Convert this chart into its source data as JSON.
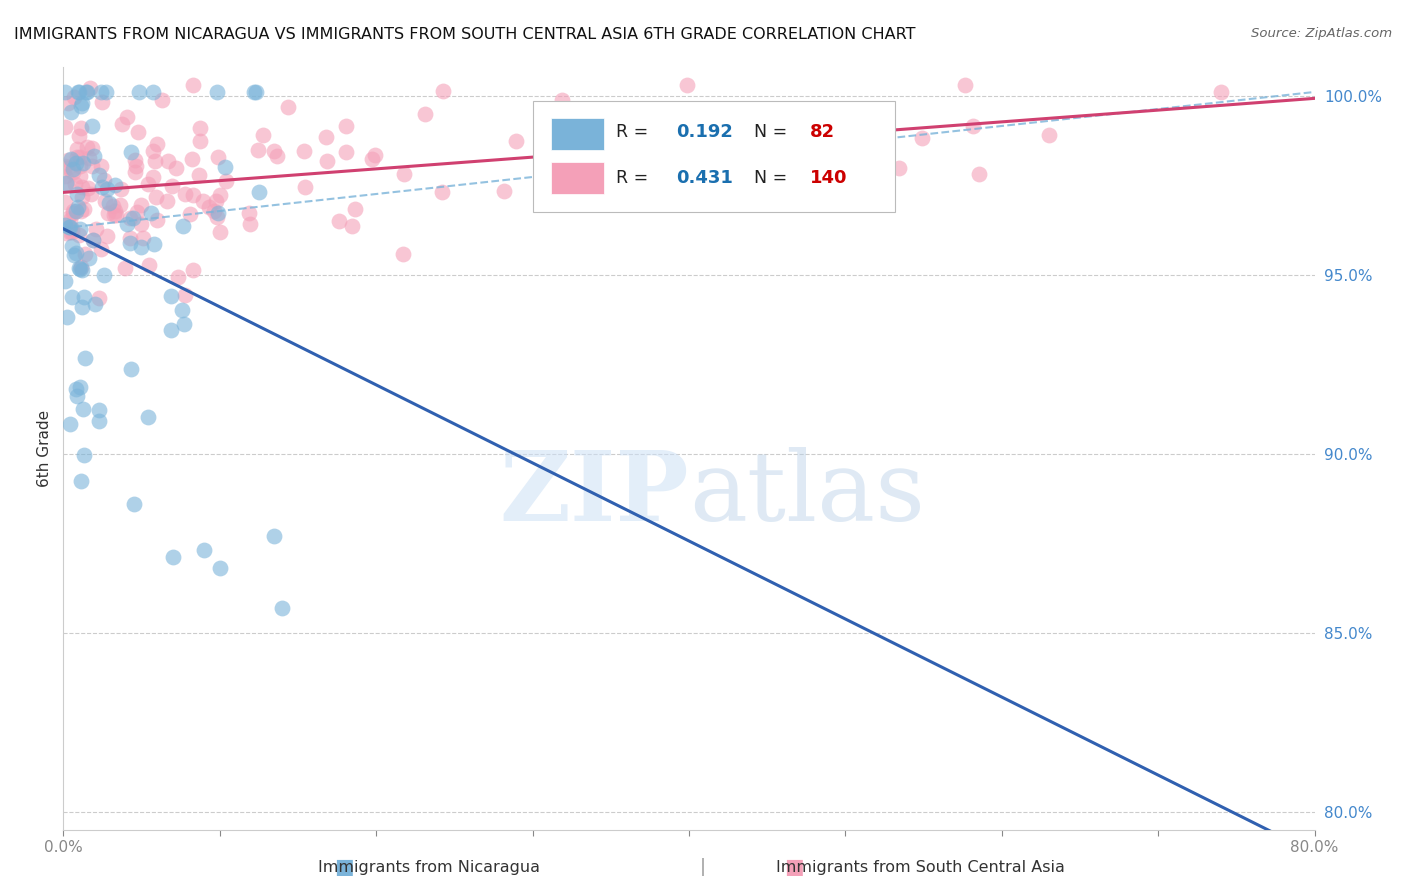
{
  "title": "IMMIGRANTS FROM NICARAGUA VS IMMIGRANTS FROM SOUTH CENTRAL ASIA 6TH GRADE CORRELATION CHART",
  "source": "Source: ZipAtlas.com",
  "xlabel_blue": "Immigrants from Nicaragua",
  "xlabel_pink": "Immigrants from South Central Asia",
  "ylabel": "6th Grade",
  "xlim": [
    0.0,
    0.8
  ],
  "ylim": [
    0.795,
    1.008
  ],
  "xticks": [
    0.0,
    0.1,
    0.2,
    0.3,
    0.4,
    0.5,
    0.6,
    0.7,
    0.8
  ],
  "yticks": [
    0.8,
    0.85,
    0.9,
    0.95,
    1.0
  ],
  "yticklabels": [
    "80.0%",
    "85.0%",
    "90.0%",
    "95.0%",
    "100.0%"
  ],
  "blue_color": "#7ab3d9",
  "pink_color": "#f4a0b8",
  "blue_line_color": "#3060b0",
  "pink_line_color": "#d04070",
  "blue_R": 0.192,
  "blue_N": 82,
  "pink_R": 0.431,
  "pink_N": 140,
  "watermark_zip": "ZIP",
  "watermark_atlas": "atlas",
  "background_color": "#ffffff",
  "grid_color": "#cccccc",
  "legend_R_color": "#1a6faf",
  "legend_N_color": "#cc0000",
  "title_color": "#111111",
  "ylabel_color": "#333333",
  "ytick_color": "#4488cc",
  "source_color": "#666666"
}
